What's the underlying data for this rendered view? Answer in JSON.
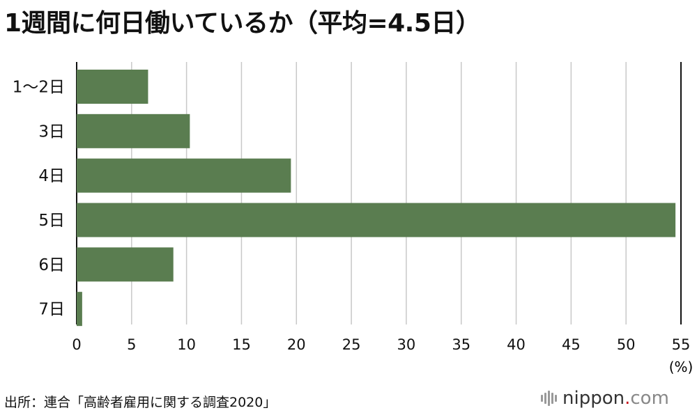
{
  "chart_data": {
    "type": "bar",
    "orientation": "horizontal",
    "title": "1週間に何日働いているか（平均=4.5日）",
    "categories": [
      "1〜2日",
      "3日",
      "4日",
      "5日",
      "6日",
      "7日"
    ],
    "values": [
      6.5,
      10.3,
      19.5,
      54.5,
      8.8,
      0.5
    ],
    "xlim": [
      0,
      55
    ],
    "xticks": [
      0,
      5,
      10,
      15,
      20,
      25,
      30,
      35,
      40,
      45,
      50,
      55
    ],
    "unit_label": "(%)",
    "grid": true,
    "bar_color": "#5a7d50"
  },
  "source": "出所：連合「高齢者雇用に関する調査2020」",
  "logo": {
    "name": "nippon",
    "dot": ".",
    "tld": "com"
  }
}
